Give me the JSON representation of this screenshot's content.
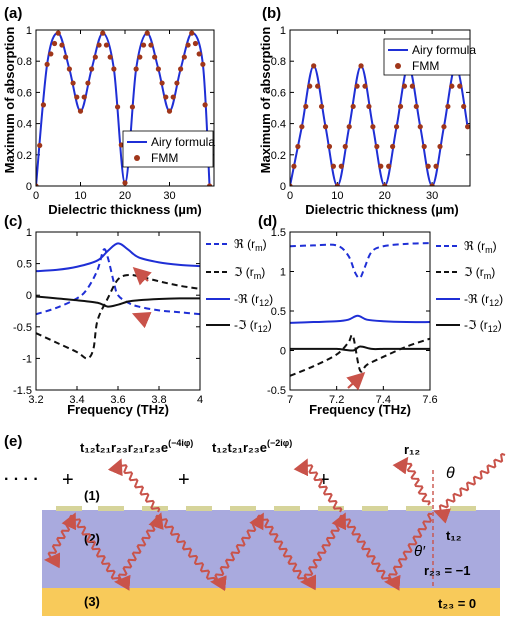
{
  "chart_data": [
    {
      "panel": "(a)",
      "type": "line",
      "xlabel": "Dielectric thickness (µm)",
      "ylabel": "Maximum of absorption",
      "xlim": [
        0,
        40
      ],
      "ylim": [
        0,
        1
      ],
      "xticks": [
        "0",
        "10",
        "20",
        "30"
      ],
      "yticks": [
        "0",
        "0.2",
        "0.4",
        "0.6",
        "0.8",
        "1"
      ],
      "grid": false,
      "legend": "bottom-right",
      "series": [
        {
          "name": "Airy formula",
          "color": "#1f2fd6",
          "style": "line",
          "x": [
            0,
            2.5,
            5,
            7.5,
            10,
            12.5,
            15,
            17.5,
            20,
            22.5,
            25,
            27.5,
            30,
            32.5,
            35,
            37.5,
            39
          ],
          "y": [
            0,
            0.78,
            0.98,
            0.75,
            0.48,
            0.75,
            0.98,
            0.75,
            0.02,
            0.75,
            0.98,
            0.75,
            0.48,
            0.75,
            0.98,
            0.78,
            0
          ]
        },
        {
          "name": "FMM",
          "color": "#a0361a",
          "style": "markers",
          "x": [
            0,
            2.5,
            5,
            7.5,
            10,
            12.5,
            15,
            17.5,
            20,
            22.5,
            25,
            27.5,
            30,
            32.5,
            35,
            37.5,
            39
          ],
          "y": [
            0,
            0.78,
            0.98,
            0.75,
            0.48,
            0.75,
            0.98,
            0.75,
            0.02,
            0.75,
            0.98,
            0.75,
            0.48,
            0.75,
            0.98,
            0.78,
            0
          ]
        }
      ]
    },
    {
      "panel": "(b)",
      "type": "line",
      "xlabel": "Dielectric thickness (µm)",
      "ylabel": "Maximum of absorption",
      "xlim": [
        0,
        38
      ],
      "ylim": [
        0,
        1
      ],
      "xticks": [
        "0",
        "10",
        "20",
        "30"
      ],
      "yticks": [
        "0",
        "0.2",
        "0.4",
        "0.6",
        "0.8",
        "1"
      ],
      "grid": false,
      "legend": "top-right",
      "series": [
        {
          "name": "Airy formula",
          "color": "#1f2fd6",
          "style": "line",
          "x": [
            0,
            2.5,
            5,
            7.5,
            10,
            12.5,
            15,
            17.5,
            20,
            22.5,
            25,
            27.5,
            30,
            32.5,
            35,
            37.5
          ],
          "y": [
            0,
            0.38,
            0.77,
            0.38,
            0,
            0.38,
            0.77,
            0.38,
            0,
            0.38,
            0.77,
            0.38,
            0,
            0.38,
            0.77,
            0.38
          ]
        },
        {
          "name": "FMM",
          "color": "#a0361a",
          "style": "markers",
          "x": [
            0,
            2.5,
            5,
            7.5,
            10,
            12.5,
            15,
            17.5,
            20,
            22.5,
            25,
            27.5,
            30,
            32.5,
            35,
            37.5
          ],
          "y": [
            0,
            0.38,
            0.77,
            0.38,
            0,
            0.38,
            0.77,
            0.38,
            0,
            0.38,
            0.77,
            0.38,
            0,
            0.38,
            0.77,
            0.38
          ]
        }
      ]
    },
    {
      "panel": "(c)",
      "type": "line",
      "xlabel": "Frequency (THz)",
      "xlim": [
        3.2,
        4
      ],
      "ylim": [
        -1.5,
        1
      ],
      "xticks": [
        "3.2",
        "3.4",
        "3.6",
        "3.8",
        "4"
      ],
      "yticks": [
        "-1.5",
        "-1",
        "-0.5",
        "0",
        "0.5",
        "1"
      ],
      "grid": false,
      "legend": "outside-right",
      "series": [
        {
          "name": "ℜ (r",
          "sub": "m",
          "color": "#1f2fd6",
          "dash": "6,4",
          "x": [
            3.2,
            3.3,
            3.4,
            3.45,
            3.5,
            3.53,
            3.55,
            3.58,
            3.6,
            3.65,
            3.7,
            3.8,
            3.9,
            4.0
          ],
          "y": [
            -0.3,
            -0.2,
            -0.05,
            0.1,
            0.4,
            0.72,
            0.6,
            0.2,
            0.0,
            -0.12,
            -0.18,
            -0.24,
            -0.27,
            -0.3
          ]
        },
        {
          "name": "ℑ (r",
          "sub": "m",
          "color": "#111111",
          "dash": "6,4",
          "x": [
            3.2,
            3.3,
            3.4,
            3.45,
            3.48,
            3.5,
            3.55,
            3.6,
            3.65,
            3.7,
            3.8,
            3.9,
            4.0
          ],
          "y": [
            -0.6,
            -0.75,
            -0.9,
            -1.0,
            -0.85,
            -0.4,
            -0.05,
            0.25,
            0.32,
            0.3,
            0.22,
            0.15,
            0.1
          ]
        },
        {
          "name": "-ℜ (r",
          "sub": "12",
          "color": "#1f2fd6",
          "dash": "",
          "x": [
            3.2,
            3.3,
            3.4,
            3.5,
            3.55,
            3.6,
            3.65,
            3.7,
            3.8,
            3.9,
            4.0
          ],
          "y": [
            0.38,
            0.4,
            0.45,
            0.55,
            0.7,
            0.82,
            0.72,
            0.6,
            0.52,
            0.48,
            0.46
          ]
        },
        {
          "name": "-ℑ (r",
          "sub": "12",
          "color": "#111111",
          "dash": "",
          "x": [
            3.2,
            3.3,
            3.4,
            3.5,
            3.55,
            3.6,
            3.65,
            3.7,
            3.8,
            3.9,
            4.0
          ],
          "y": [
            -0.02,
            -0.05,
            -0.08,
            -0.12,
            -0.18,
            -0.15,
            -0.1,
            -0.08,
            -0.06,
            -0.05,
            -0.05
          ]
        }
      ]
    },
    {
      "panel": "(d)",
      "type": "line",
      "xlabel": "Frequency (THz)",
      "xlim": [
        7,
        7.6
      ],
      "ylim": [
        -0.5,
        1.5
      ],
      "xticks": [
        "7",
        "7.2",
        "7.4",
        "7.6"
      ],
      "yticks": [
        "-0.5",
        "0",
        "0.5",
        "1",
        "1.5"
      ],
      "grid": false,
      "legend": "outside-right",
      "series": [
        {
          "name": "ℜ (r",
          "sub": "m",
          "color": "#1f2fd6",
          "dash": "6,4",
          "x": [
            7.0,
            7.1,
            7.2,
            7.25,
            7.28,
            7.3,
            7.32,
            7.35,
            7.4,
            7.5,
            7.6
          ],
          "y": [
            1.32,
            1.33,
            1.33,
            1.2,
            0.98,
            0.92,
            1.05,
            1.25,
            1.32,
            1.35,
            1.36
          ]
        },
        {
          "name": "ℑ (r",
          "sub": "m",
          "color": "#111111",
          "dash": "6,4",
          "x": [
            7.0,
            7.1,
            7.2,
            7.25,
            7.27,
            7.3,
            7.33,
            7.4,
            7.5,
            7.6
          ],
          "y": [
            -0.32,
            -0.2,
            -0.05,
            0.1,
            0.18,
            -0.25,
            -0.18,
            -0.08,
            0.05,
            0.15
          ]
        },
        {
          "name": "-ℜ (r",
          "sub": "12",
          "color": "#1f2fd6",
          "dash": "",
          "x": [
            7.0,
            7.1,
            7.2,
            7.25,
            7.29,
            7.33,
            7.4,
            7.5,
            7.6
          ],
          "y": [
            0.35,
            0.36,
            0.37,
            0.39,
            0.44,
            0.39,
            0.37,
            0.36,
            0.36
          ]
        },
        {
          "name": "-ℑ (r",
          "sub": "12",
          "color": "#111111",
          "dash": "",
          "x": [
            7.0,
            7.1,
            7.2,
            7.27,
            7.3,
            7.35,
            7.4,
            7.5,
            7.6
          ],
          "y": [
            0.02,
            0.02,
            0.02,
            0.0,
            0.05,
            0.02,
            0.02,
            0.02,
            0.02
          ]
        }
      ]
    }
  ],
  "panel_e": {
    "label": "(e)",
    "dots": "· · · ·",
    "plus": "+",
    "term3": "t₁₂t₂₁r₂₃r₂₁r₂₃e",
    "term3_exp": "(−4iφ)",
    "term2": "t₁₂t₂₁r₂₃e",
    "term2_exp": "(−2iφ)",
    "term1": "r₁₂",
    "theta": "θ",
    "theta_prime": "θ′",
    "t12": "t₁₂",
    "r23": "r₂₃ = −1",
    "t23": "t₂₃ = 0",
    "region1": "(1)",
    "region2": "(2)",
    "region3": "(3)",
    "colors": {
      "dielectric": "#a9aade",
      "metal": "#f8ca5a",
      "patch": "#d6d49a",
      "wave": "#c9534a"
    }
  }
}
